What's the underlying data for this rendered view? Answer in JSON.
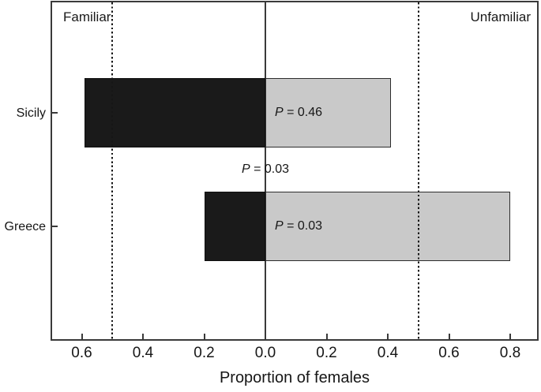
{
  "chart_data": {
    "type": "bar",
    "orientation": "horizontal_diverging",
    "title": "",
    "xlabel": "Proportion of females",
    "side_labels": {
      "left": "Familiar",
      "right": "Unfamiliar"
    },
    "categories": [
      "Sicily",
      "Greece"
    ],
    "series": [
      {
        "name": "Familiar",
        "side": "left",
        "color": "#1a1a1a",
        "values": [
          0.59,
          0.2
        ]
      },
      {
        "name": "Unfamiliar",
        "side": "right",
        "color": "#c9c9c9",
        "values": [
          0.41,
          0.8
        ]
      }
    ],
    "x_axis": {
      "ticks": [
        {
          "value": -0.6,
          "label": "0.6"
        },
        {
          "value": -0.4,
          "label": "0.4"
        },
        {
          "value": -0.2,
          "label": "0.2"
        },
        {
          "value": 0.0,
          "label": "0.0"
        },
        {
          "value": 0.2,
          "label": "0.2"
        },
        {
          "value": 0.4,
          "label": "0.4"
        },
        {
          "value": 0.6,
          "label": "0.6"
        },
        {
          "value": 0.8,
          "label": "0.8"
        }
      ]
    },
    "reference_lines": [
      {
        "value": -0.5,
        "style": "dotted"
      },
      {
        "value": 0.5,
        "style": "dotted"
      },
      {
        "value": 0.0,
        "style": "solid"
      }
    ],
    "annotations": [
      {
        "label": "P = 0.46",
        "anchor": "bar",
        "category": "Sicily"
      },
      {
        "label": "P = 0.03",
        "anchor": "between-bars"
      },
      {
        "label": "P = 0.03",
        "anchor": "bar",
        "category": "Greece"
      }
    ],
    "legend": "none",
    "grid": false
  }
}
